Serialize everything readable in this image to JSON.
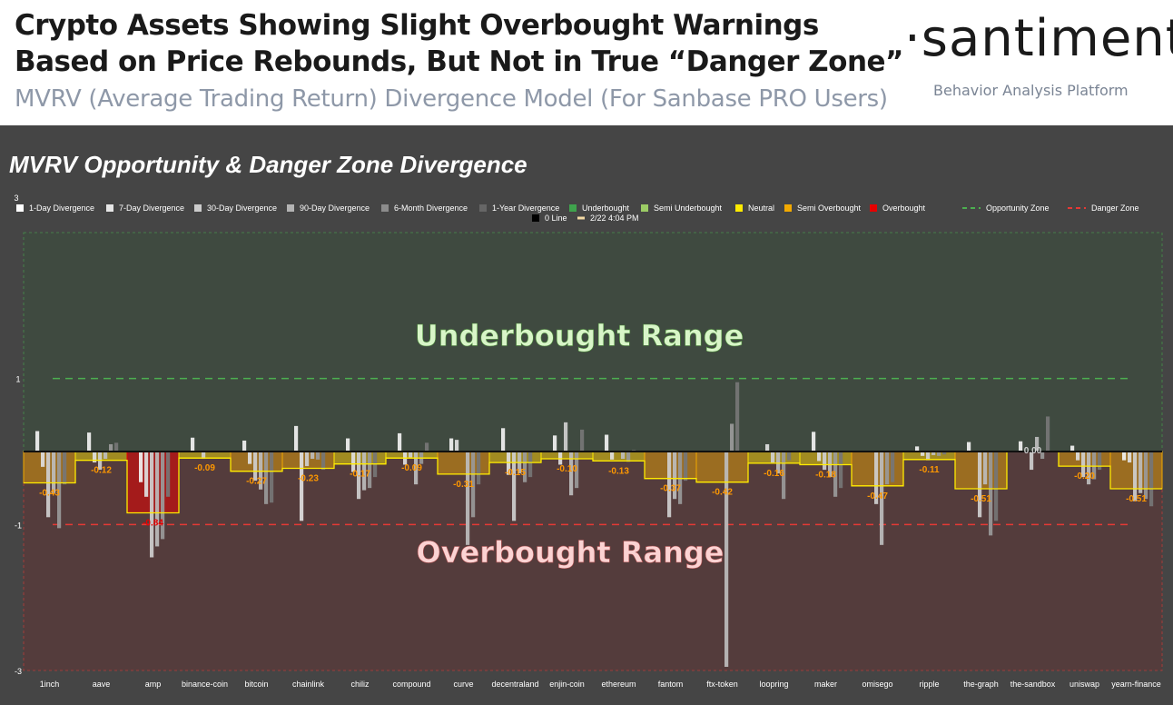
{
  "header": {
    "title_line1": "Crypto Assets Showing Slight Overbought Warnings",
    "title_line2": "Based on Price Rebounds, But Not in True “Danger Zone”",
    "subtitle": "MVRV (Average Trading Return) Divergence Model (For Sanbase PRO Users)",
    "brand": "·santiment·",
    "brand_tagline": "Behavior Analysis Platform"
  },
  "colors": {
    "background": "#454545",
    "underbought_zone": "#3f4a40",
    "overbought_zone": "#543c3c",
    "semi_overbought": "#f2a900",
    "overbought": "#e60000",
    "underbought": "#3fa34d",
    "semi_underbought": "#9ccc65",
    "neutral": "#ffeb00",
    "opportunity_line": "#4caf50",
    "danger_line": "#e53935",
    "label_orange": "#ff9800"
  },
  "chart_data": {
    "type": "bar",
    "title": "MVRV Opportunity & Danger Zone Divergence",
    "ylim": [
      -3,
      3
    ],
    "y_ticks": [
      "3",
      "1",
      "-1",
      "-3"
    ],
    "opportunity_zone": 1,
    "danger_zone": -1,
    "range_labels": {
      "underbought": "Underbought Range",
      "overbought": "Overbought Range"
    },
    "legend": [
      {
        "label": "1-Day Divergence",
        "color": "#ffffff"
      },
      {
        "label": "7-Day Divergence",
        "color": "#e6e6e6"
      },
      {
        "label": "30-Day Divergence",
        "color": "#cccccc"
      },
      {
        "label": "90-Day Divergence",
        "color": "#b3b3b3"
      },
      {
        "label": "6-Month Divergence",
        "color": "#8c8c8c"
      },
      {
        "label": "1-Year Divergence",
        "color": "#666666"
      },
      {
        "label": "Underbought",
        "color": "#3fa34d"
      },
      {
        "label": "Semi Underbought",
        "color": "#9ccc65"
      },
      {
        "label": "Neutral",
        "color": "#ffeb00"
      },
      {
        "label": "Semi Overbought",
        "color": "#f2a900"
      },
      {
        "label": "Overbought",
        "color": "#e60000"
      },
      {
        "label": "Opportunity Zone",
        "color": "#4caf50",
        "style": "dashed"
      },
      {
        "label": "Danger Zone",
        "color": "#e53935",
        "style": "dashed"
      },
      {
        "label": "0 Line",
        "color": "#000000"
      },
      {
        "label": "2/22 4:04 PM",
        "color": "#f3d9a4",
        "style": "line"
      }
    ],
    "categories": [
      "1inch",
      "aave",
      "amp",
      "binance-coin",
      "bitcoin",
      "chainlink",
      "chiliz",
      "compound",
      "curve",
      "decentraland",
      "enjin-coin",
      "ethereum",
      "fantom",
      "ftx-token",
      "loopring",
      "maker",
      "omisego",
      "ripple",
      "the-graph",
      "the-sandbox",
      "uniswap",
      "yearn-finance"
    ],
    "current_divergence": {
      "values": [
        -0.43,
        -0.12,
        -0.84,
        -0.09,
        -0.27,
        -0.23,
        -0.17,
        -0.09,
        -0.31,
        -0.15,
        -0.1,
        -0.13,
        -0.37,
        -0.42,
        -0.16,
        -0.18,
        -0.47,
        -0.11,
        -0.51,
        0.0,
        -0.2,
        -0.51
      ],
      "labels": [
        "-0.43",
        "-0.12",
        "-0.84",
        "-0.09",
        "-0.27",
        "-0.23",
        "-0.17",
        "-0.09",
        "-0.31",
        "-0.15",
        "-0.10",
        "-0.13",
        "-0.37",
        "-0.42",
        "-0.16",
        "-0.18",
        "-0.47",
        "-0.11",
        "-0.51",
        "0.00",
        "-0.20",
        "-0.51"
      ],
      "zones": [
        "semi_overbought",
        "neutral",
        "overbought",
        "neutral",
        "semi_overbought",
        "semi_overbought",
        "neutral",
        "neutral",
        "semi_overbought",
        "neutral",
        "neutral",
        "neutral",
        "semi_overbought",
        "semi_overbought",
        "neutral",
        "neutral",
        "semi_overbought",
        "neutral",
        "semi_overbought",
        "neutral",
        "semi_overbought",
        "semi_overbought"
      ]
    },
    "series": [
      {
        "name": "1-Day Divergence",
        "values": [
          0.28,
          0.26,
          -0.42,
          0.19,
          0.15,
          0.35,
          0.18,
          0.25,
          0.18,
          0.32,
          0.22,
          0.23,
          0.0,
          0.0,
          0.0,
          0.27,
          0.0,
          0.07,
          0.13,
          0.14,
          0.08,
          -0.12
        ]
      },
      {
        "name": "7-Day Divergence",
        "values": [
          -0.21,
          -0.15,
          -0.62,
          0.0,
          -0.17,
          -0.95,
          -0.28,
          -0.18,
          0.16,
          -0.32,
          -0.18,
          -0.11,
          0.0,
          0.0,
          0.1,
          -0.13,
          0.0,
          -0.06,
          0.0,
          0.0,
          -0.12,
          -0.15
        ]
      },
      {
        "name": "30-Day Divergence",
        "values": [
          -0.9,
          -0.25,
          -1.45,
          -0.1,
          -0.4,
          -0.2,
          -0.65,
          -0.08,
          0.0,
          -0.95,
          0.4,
          0.0,
          -0.9,
          0.0,
          -0.15,
          -0.25,
          -0.72,
          -0.12,
          -0.9,
          -0.25,
          -0.35,
          -0.68
        ]
      },
      {
        "name": "90-Day Divergence",
        "values": [
          -0.57,
          -0.1,
          -1.3,
          0.0,
          -0.52,
          -0.1,
          -0.53,
          -0.45,
          -1.28,
          -0.3,
          -0.6,
          -0.1,
          -0.65,
          -2.95,
          -0.3,
          -0.35,
          -1.28,
          -0.05,
          -0.45,
          0.2,
          -0.45,
          -0.57
        ]
      },
      {
        "name": "6-Month Divergence",
        "values": [
          -1.05,
          0.1,
          -1.2,
          0.0,
          -0.72,
          -0.11,
          -0.5,
          -0.17,
          -0.9,
          -0.42,
          -0.5,
          -0.14,
          -0.72,
          0.38,
          -0.65,
          -0.62,
          -0.45,
          -0.06,
          -1.15,
          -0.1,
          -0.38,
          -0.65
        ]
      },
      {
        "name": "1-Year Divergence",
        "values": [
          -0.45,
          0.12,
          -0.62,
          0.0,
          -0.7,
          -0.25,
          -0.35,
          0.12,
          -0.45,
          -0.35,
          0.3,
          0.02,
          -0.4,
          0.95,
          -0.12,
          -0.5,
          -0.42,
          -0.04,
          -0.95,
          0.48,
          -0.25,
          -0.75
        ]
      }
    ]
  }
}
